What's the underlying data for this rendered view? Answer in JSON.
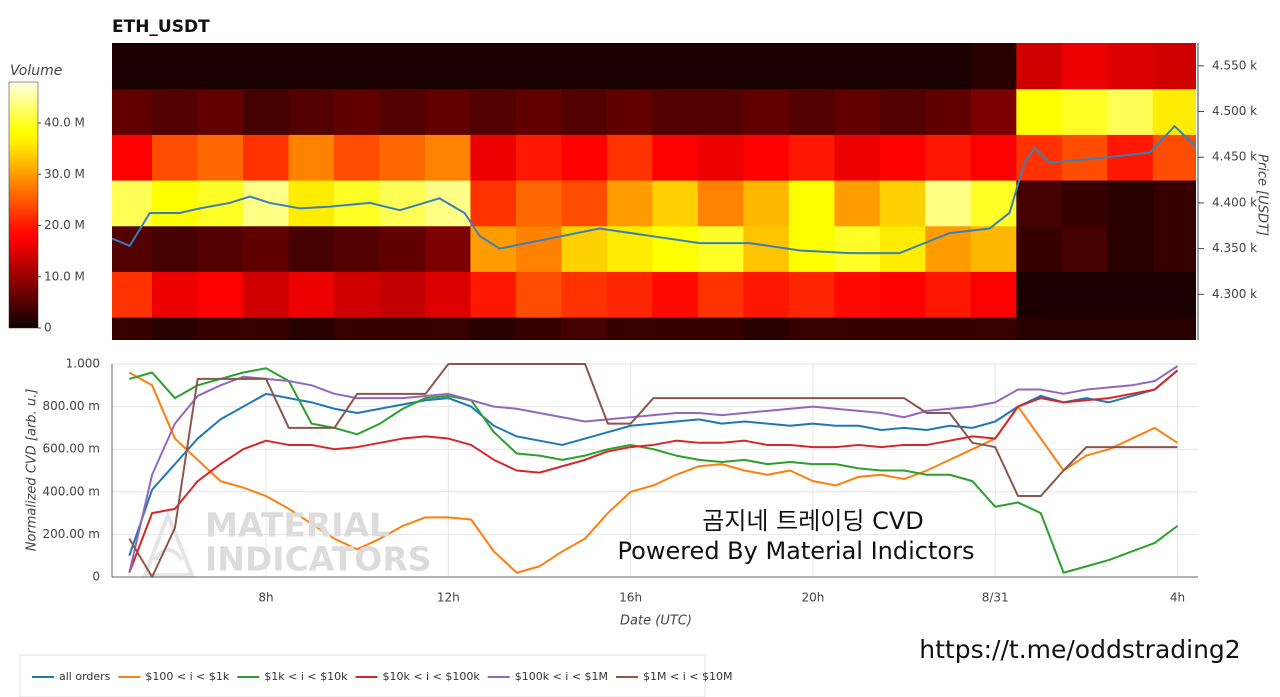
{
  "chart_data": [
    {
      "type": "heatmap",
      "title": "ETH_USDT",
      "y_label": "Price [USDT]",
      "y_side": "right",
      "xlim": [
        4.62,
        28.45
      ],
      "ylim": [
        4250,
        4575
      ],
      "yticks": [
        {
          "value": 4300,
          "label": "4.300 k"
        },
        {
          "value": 4350,
          "label": "4.350 k"
        },
        {
          "value": 4400,
          "label": "4.400 k"
        },
        {
          "value": 4450,
          "label": "4.450 k"
        },
        {
          "value": 4500,
          "label": "4.500 k"
        },
        {
          "value": 4550,
          "label": "4.550 k"
        }
      ],
      "x_bins": [
        4.5,
        5.5,
        6.5,
        7.5,
        8.5,
        9.5,
        10.5,
        11.5,
        12.5,
        13.5,
        14.5,
        15.5,
        16.5,
        17.5,
        18.5,
        19.5,
        20.5,
        21.5,
        22.5,
        23.5,
        24.5,
        25.5,
        26.5,
        27.5,
        28.5
      ],
      "y_bins": [
        4225,
        4275,
        4325,
        4375,
        4425,
        4475,
        4525,
        4575
      ],
      "z": [
        [
          3,
          2,
          3,
          3,
          2,
          3,
          3,
          3,
          2,
          3,
          4,
          3,
          3,
          3,
          2,
          3,
          3,
          3,
          3,
          3,
          2,
          2,
          2,
          2
        ],
        [
          22,
          16,
          18,
          14,
          16,
          14,
          13,
          15,
          20,
          24,
          22,
          21,
          19,
          22,
          20,
          21,
          19,
          18,
          20,
          17,
          1,
          1,
          1,
          1
        ],
        [
          5,
          4,
          5,
          6,
          4,
          5,
          6,
          8,
          30,
          28,
          34,
          36,
          38,
          40,
          33,
          38,
          40,
          36,
          30,
          32,
          3,
          4,
          2,
          3
        ],
        [
          42,
          38,
          40,
          44,
          36,
          40,
          42,
          44,
          22,
          26,
          24,
          30,
          34,
          28,
          32,
          38,
          30,
          34,
          44,
          40,
          4,
          3,
          2,
          3
        ],
        [
          18,
          24,
          26,
          22,
          28,
          24,
          26,
          28,
          16,
          20,
          18,
          22,
          17,
          16,
          18,
          20,
          16,
          18,
          20,
          17,
          22,
          24,
          20,
          24
        ],
        [
          6,
          5,
          6,
          4,
          5,
          6,
          5,
          6,
          5,
          6,
          5,
          6,
          5,
          5,
          6,
          5,
          6,
          5,
          6,
          8,
          38,
          40,
          42,
          36
        ],
        [
          1,
          1,
          1,
          1,
          1,
          1,
          1,
          1,
          1,
          1,
          1,
          1,
          1,
          1,
          1,
          1,
          1,
          1,
          1,
          2,
          14,
          16,
          15,
          14
        ]
      ],
      "colorbar": {
        "label": "Volume",
        "lim": [
          0,
          48
        ],
        "ticks": [
          0,
          {
            "value": 10,
            "label": "10.0 M"
          },
          {
            "value": 20,
            "label": "20.0 M"
          },
          {
            "value": 30,
            "label": "30.0 M"
          },
          {
            "value": 40,
            "label": "40.0 M"
          }
        ]
      },
      "price": {
        "color": "#3a80b8",
        "x": [
          4.62,
          5.01,
          5.45,
          6.11,
          6.55,
          7.21,
          7.65,
          8.09,
          8.75,
          9.41,
          10.29,
          10.95,
          11.82,
          12.37,
          12.7,
          13.14,
          14.24,
          15.34,
          16.44,
          17.54,
          18.64,
          19.74,
          20.84,
          21.93,
          23.03,
          23.91,
          24.35,
          24.68,
          24.9,
          25.23,
          26.33,
          27.43,
          27.98,
          28.44
        ],
        "values": [
          4361,
          4353,
          4389,
          4389,
          4394,
          4400,
          4407,
          4400,
          4394,
          4396,
          4400,
          4392,
          4405,
          4389,
          4364,
          4350,
          4361,
          4372,
          4364,
          4356,
          4356,
          4348,
          4345,
          4345,
          4367,
          4372,
          4389,
          4444,
          4460,
          4444,
          4449,
          4455,
          4484,
          4462
        ]
      }
    },
    {
      "type": "line",
      "x_label": "Date (UTC)",
      "y_label": "Normalized CVD [arb. u.]",
      "xlim": [
        4.62,
        28.45
      ],
      "ylim": [
        0,
        1
      ],
      "grid": true,
      "legend": "bottom-left",
      "xticks": [
        {
          "value": 8,
          "label": "8h"
        },
        {
          "value": 12,
          "label": "12h"
        },
        {
          "value": 16,
          "label": "16h"
        },
        {
          "value": 20,
          "label": "20h"
        },
        {
          "value": 24,
          "label": "8/31"
        },
        {
          "value": 28,
          "label": "4h"
        }
      ],
      "yticks": [
        0,
        {
          "value": 0.2,
          "label": "200.00 m"
        },
        {
          "value": 0.4,
          "label": "400.00 m"
        },
        {
          "value": 0.6,
          "label": "600.00 m"
        },
        {
          "value": 0.8,
          "label": "800.00 m"
        },
        {
          "value": 1,
          "label": "1.000"
        }
      ],
      "x": [
        5,
        5.5,
        6,
        6.5,
        7,
        7.5,
        8,
        8.5,
        9,
        9.5,
        10,
        10.5,
        11,
        11.5,
        12,
        12.5,
        13,
        13.5,
        14,
        14.5,
        15,
        15.5,
        16,
        16.5,
        17,
        17.5,
        18,
        18.5,
        19,
        19.5,
        20,
        20.5,
        21,
        21.5,
        22,
        22.5,
        23,
        23.5,
        24,
        24.5,
        25,
        25.5,
        26,
        26.5,
        27,
        27.5,
        28
      ],
      "series": [
        {
          "name": "all orders",
          "color": "#1f77b4",
          "values": [
            0.1,
            0.41,
            0.53,
            0.65,
            0.74,
            0.8,
            0.86,
            0.84,
            0.82,
            0.79,
            0.77,
            0.79,
            0.81,
            0.83,
            0.84,
            0.8,
            0.71,
            0.66,
            0.64,
            0.62,
            0.65,
            0.68,
            0.71,
            0.72,
            0.73,
            0.74,
            0.72,
            0.73,
            0.72,
            0.71,
            0.72,
            0.71,
            0.71,
            0.69,
            0.7,
            0.69,
            0.71,
            0.7,
            0.73,
            0.8,
            0.85,
            0.82,
            0.84,
            0.82,
            0.85,
            0.88,
            0.97
          ]
        },
        {
          "name": "$100 < i < $1k",
          "color": "#ff7f0e",
          "values": [
            0.96,
            0.9,
            0.65,
            0.55,
            0.45,
            0.42,
            0.38,
            0.32,
            0.25,
            0.18,
            0.13,
            0.18,
            0.24,
            0.28,
            0.28,
            0.27,
            0.12,
            0.02,
            0.05,
            0.12,
            0.18,
            0.3,
            0.4,
            0.43,
            0.48,
            0.52,
            0.53,
            0.5,
            0.48,
            0.5,
            0.45,
            0.43,
            0.47,
            0.48,
            0.46,
            0.5,
            0.55,
            0.6,
            0.65,
            0.8,
            0.65,
            0.5,
            0.57,
            0.6,
            0.65,
            0.7,
            0.63
          ]
        },
        {
          "name": "$1k < i < $10k",
          "color": "#2ca02c",
          "values": [
            0.93,
            0.96,
            0.84,
            0.9,
            0.93,
            0.96,
            0.98,
            0.92,
            0.72,
            0.7,
            0.67,
            0.72,
            0.79,
            0.84,
            0.85,
            0.83,
            0.68,
            0.58,
            0.57,
            0.55,
            0.57,
            0.6,
            0.62,
            0.6,
            0.57,
            0.55,
            0.54,
            0.55,
            0.53,
            0.54,
            0.53,
            0.53,
            0.51,
            0.5,
            0.5,
            0.48,
            0.48,
            0.45,
            0.33,
            0.35,
            0.3,
            0.02,
            0.05,
            0.08,
            0.12,
            0.16,
            0.24
          ]
        },
        {
          "name": "$10k < i < $100k",
          "color": "#d62728",
          "values": [
            0.02,
            0.3,
            0.32,
            0.45,
            0.53,
            0.6,
            0.64,
            0.62,
            0.62,
            0.6,
            0.61,
            0.63,
            0.65,
            0.66,
            0.65,
            0.62,
            0.55,
            0.5,
            0.49,
            0.52,
            0.55,
            0.59,
            0.61,
            0.62,
            0.64,
            0.63,
            0.63,
            0.64,
            0.62,
            0.62,
            0.61,
            0.61,
            0.62,
            0.61,
            0.62,
            0.62,
            0.64,
            0.66,
            0.65,
            0.8,
            0.84,
            0.82,
            0.83,
            0.84,
            0.86,
            0.88,
            0.97
          ]
        },
        {
          "name": "$100k < i < $1M",
          "color": "#9467bd",
          "values": [
            0.02,
            0.48,
            0.72,
            0.85,
            0.9,
            0.94,
            0.93,
            0.92,
            0.9,
            0.86,
            0.84,
            0.84,
            0.84,
            0.85,
            0.86,
            0.83,
            0.8,
            0.79,
            0.77,
            0.75,
            0.73,
            0.74,
            0.75,
            0.76,
            0.77,
            0.77,
            0.76,
            0.77,
            0.78,
            0.79,
            0.8,
            0.79,
            0.78,
            0.77,
            0.75,
            0.78,
            0.79,
            0.8,
            0.82,
            0.88,
            0.88,
            0.86,
            0.88,
            0.89,
            0.9,
            0.92,
            0.99
          ]
        },
        {
          "name": "$1M < i < $10M",
          "color": "#8c564b",
          "values": [
            0.18,
            0,
            0.23,
            0.93,
            0.93,
            0.93,
            0.93,
            0.7,
            0.7,
            0.7,
            0.86,
            0.86,
            0.86,
            0.86,
            1,
            1,
            1,
            1,
            1,
            1,
            1,
            0.72,
            0.72,
            0.84,
            0.84,
            0.84,
            0.84,
            0.84,
            0.84,
            0.84,
            0.84,
            0.84,
            0.84,
            0.84,
            0.84,
            0.77,
            0.77,
            0.63,
            0.61,
            0.38,
            0.38,
            0.5,
            0.61,
            0.61,
            0.61,
            0.61,
            0.61
          ]
        }
      ],
      "annotations": [
        "곰지네 트레이딩 CVD",
        "Powered By Material Indictors"
      ],
      "watermark": [
        "MATERIAL",
        "INDICATORS"
      ]
    }
  ],
  "link": "https://t.me/oddstrading2"
}
